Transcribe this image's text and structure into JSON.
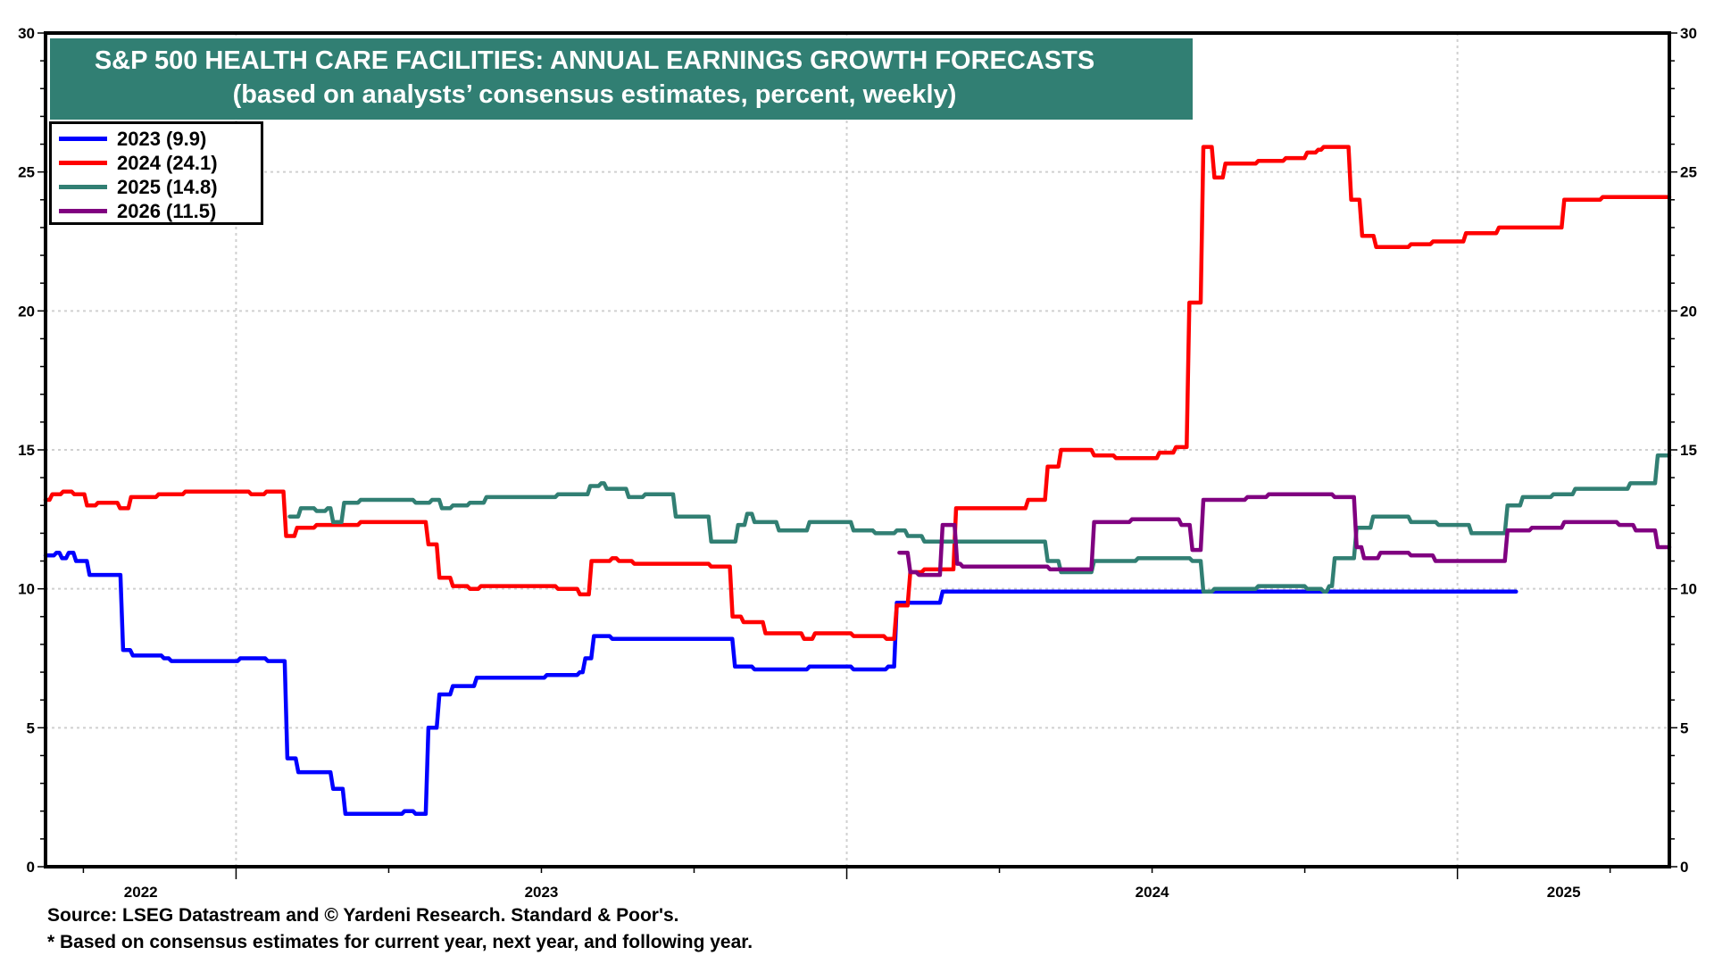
{
  "chart_data": {
    "type": "line",
    "title": "S&P 500 HEALTH CARE FACILITIES: ANNUAL EARNINGS GROWTH FORECASTS",
    "subtitle": "(based on analysts’ consensus estimates, percent, weekly)",
    "xlabel": "",
    "ylabel": "",
    "x_unit": "fractional year",
    "xlim": [
      2022.688,
      2025.347
    ],
    "ylim": [
      0,
      30
    ],
    "y_ticks": [
      0,
      5,
      10,
      15,
      20,
      25,
      30
    ],
    "y_tick_labels": [
      "0",
      "5",
      "10",
      "15",
      "20",
      "25",
      "30"
    ],
    "x_year_boundaries": [
      2023,
      2024,
      2025
    ],
    "x_tick_labels": [
      {
        "label": "2022",
        "at": 2022.844
      },
      {
        "label": "2023",
        "at": 2023.5
      },
      {
        "label": "2024",
        "at": 2024.5
      },
      {
        "label": "2025",
        "at": 2025.174
      }
    ],
    "grid": true,
    "legend_position": "top-left",
    "step": true,
    "series": [
      {
        "name": "2023 (9.9)",
        "color": "#0000ff",
        "points": [
          [
            2022.688,
            11.2
          ],
          [
            2022.706,
            11.3
          ],
          [
            2022.715,
            11.1
          ],
          [
            2022.726,
            11.3
          ],
          [
            2022.738,
            11.0
          ],
          [
            2022.76,
            10.5
          ],
          [
            2022.815,
            7.8
          ],
          [
            2022.831,
            7.6
          ],
          [
            2022.882,
            7.5
          ],
          [
            2022.894,
            7.4
          ],
          [
            2023.007,
            7.5
          ],
          [
            2023.052,
            7.4
          ],
          [
            2023.084,
            3.9
          ],
          [
            2023.102,
            3.4
          ],
          [
            2023.159,
            2.8
          ],
          [
            2023.179,
            1.9
          ],
          [
            2023.276,
            2.0
          ],
          [
            2023.294,
            1.9
          ],
          [
            2023.315,
            5.0
          ],
          [
            2023.333,
            6.2
          ],
          [
            2023.355,
            6.5
          ],
          [
            2023.394,
            6.8
          ],
          [
            2023.509,
            6.9
          ],
          [
            2023.563,
            7.0
          ],
          [
            2023.572,
            7.5
          ],
          [
            2023.586,
            8.3
          ],
          [
            2023.616,
            8.2
          ],
          [
            2023.688,
            8.2
          ],
          [
            2023.817,
            7.2
          ],
          [
            2023.849,
            7.1
          ],
          [
            2023.939,
            7.2
          ],
          [
            2024.011,
            7.1
          ],
          [
            2024.068,
            7.2
          ],
          [
            2024.082,
            9.5
          ],
          [
            2024.157,
            9.9
          ],
          [
            2025.096,
            9.9
          ]
        ]
      },
      {
        "name": "2024 (24.1)",
        "color": "#ff0000",
        "points": [
          [
            2022.688,
            13.2
          ],
          [
            2022.699,
            13.4
          ],
          [
            2022.717,
            13.5
          ],
          [
            2022.735,
            13.4
          ],
          [
            2022.756,
            13.0
          ],
          [
            2022.774,
            13.1
          ],
          [
            2022.81,
            12.9
          ],
          [
            2022.828,
            13.3
          ],
          [
            2022.873,
            13.4
          ],
          [
            2022.917,
            13.5
          ],
          [
            2023.025,
            13.4
          ],
          [
            2023.05,
            13.5
          ],
          [
            2023.082,
            11.9
          ],
          [
            2023.1,
            12.2
          ],
          [
            2023.132,
            12.3
          ],
          [
            2023.204,
            12.4
          ],
          [
            2023.315,
            11.6
          ],
          [
            2023.333,
            10.4
          ],
          [
            2023.355,
            10.1
          ],
          [
            2023.383,
            10.0
          ],
          [
            2023.401,
            10.1
          ],
          [
            2023.527,
            10.0
          ],
          [
            2023.563,
            9.8
          ],
          [
            2023.582,
            11.0
          ],
          [
            2023.616,
            11.1
          ],
          [
            2023.627,
            11.0
          ],
          [
            2023.652,
            10.9
          ],
          [
            2023.724,
            10.9
          ],
          [
            2023.778,
            10.8
          ],
          [
            2023.813,
            9.0
          ],
          [
            2023.831,
            8.8
          ],
          [
            2023.867,
            8.4
          ],
          [
            2023.93,
            8.2
          ],
          [
            2023.948,
            8.4
          ],
          [
            2024.011,
            8.3
          ],
          [
            2024.065,
            8.2
          ],
          [
            2024.082,
            9.4
          ],
          [
            2024.104,
            10.6
          ],
          [
            2024.127,
            10.7
          ],
          [
            2024.179,
            12.9
          ],
          [
            2024.297,
            13.2
          ],
          [
            2024.329,
            14.4
          ],
          [
            2024.351,
            15.0
          ],
          [
            2024.405,
            14.8
          ],
          [
            2024.441,
            14.7
          ],
          [
            2024.512,
            14.9
          ],
          [
            2024.539,
            15.1
          ],
          [
            2024.561,
            20.3
          ],
          [
            2024.584,
            25.9
          ],
          [
            2024.602,
            24.8
          ],
          [
            2024.62,
            25.3
          ],
          [
            2024.674,
            25.4
          ],
          [
            2024.719,
            25.5
          ],
          [
            2024.754,
            25.7
          ],
          [
            2024.772,
            25.8
          ],
          [
            2024.781,
            25.9
          ],
          [
            2024.826,
            24.0
          ],
          [
            2024.844,
            22.7
          ],
          [
            2024.867,
            22.3
          ],
          [
            2024.924,
            22.4
          ],
          [
            2024.96,
            22.5
          ],
          [
            2025.014,
            22.8
          ],
          [
            2025.068,
            23.0
          ],
          [
            2025.175,
            24.0
          ],
          [
            2025.238,
            24.1
          ],
          [
            2025.347,
            24.1
          ]
        ]
      },
      {
        "name": "2025 (14.8)",
        "color": "#317f73",
        "points": [
          [
            2023.088,
            12.6
          ],
          [
            2023.106,
            12.9
          ],
          [
            2023.132,
            12.8
          ],
          [
            2023.15,
            12.9
          ],
          [
            2023.159,
            12.4
          ],
          [
            2023.177,
            13.1
          ],
          [
            2023.204,
            13.2
          ],
          [
            2023.294,
            13.1
          ],
          [
            2023.321,
            13.2
          ],
          [
            2023.337,
            12.9
          ],
          [
            2023.355,
            13.0
          ],
          [
            2023.383,
            13.1
          ],
          [
            2023.41,
            13.3
          ],
          [
            2023.509,
            13.3
          ],
          [
            2023.527,
            13.4
          ],
          [
            2023.58,
            13.7
          ],
          [
            2023.598,
            13.8
          ],
          [
            2023.607,
            13.6
          ],
          [
            2023.643,
            13.3
          ],
          [
            2023.67,
            13.4
          ],
          [
            2023.72,
            12.6
          ],
          [
            2023.778,
            11.7
          ],
          [
            2023.822,
            12.3
          ],
          [
            2023.837,
            12.7
          ],
          [
            2023.849,
            12.4
          ],
          [
            2023.889,
            12.1
          ],
          [
            2023.939,
            12.4
          ],
          [
            2024.011,
            12.1
          ],
          [
            2024.047,
            12.0
          ],
          [
            2024.082,
            12.1
          ],
          [
            2024.1,
            11.9
          ],
          [
            2024.127,
            11.7
          ],
          [
            2024.172,
            11.7
          ],
          [
            2024.329,
            11.0
          ],
          [
            2024.351,
            10.6
          ],
          [
            2024.405,
            11.0
          ],
          [
            2024.477,
            11.1
          ],
          [
            2024.566,
            11.0
          ],
          [
            2024.584,
            9.9
          ],
          [
            2024.602,
            10.0
          ],
          [
            2024.674,
            10.1
          ],
          [
            2024.754,
            10.0
          ],
          [
            2024.781,
            9.9
          ],
          [
            2024.79,
            10.1
          ],
          [
            2024.799,
            11.1
          ],
          [
            2024.835,
            12.2
          ],
          [
            2024.862,
            12.6
          ],
          [
            2024.924,
            12.4
          ],
          [
            2024.969,
            12.3
          ],
          [
            2025.023,
            12.0
          ],
          [
            2025.082,
            13.0
          ],
          [
            2025.107,
            13.3
          ],
          [
            2025.157,
            13.4
          ],
          [
            2025.193,
            13.6
          ],
          [
            2025.283,
            13.8
          ],
          [
            2025.328,
            14.8
          ],
          [
            2025.347,
            14.8
          ]
        ]
      },
      {
        "name": "2026 (11.5)",
        "color": "#800080",
        "points": [
          [
            2024.086,
            11.3
          ],
          [
            2024.104,
            10.6
          ],
          [
            2024.118,
            10.5
          ],
          [
            2024.157,
            12.3
          ],
          [
            2024.181,
            10.9
          ],
          [
            2024.19,
            10.8
          ],
          [
            2024.333,
            10.7
          ],
          [
            2024.405,
            12.4
          ],
          [
            2024.467,
            12.5
          ],
          [
            2024.548,
            12.3
          ],
          [
            2024.566,
            11.4
          ],
          [
            2024.584,
            13.2
          ],
          [
            2024.656,
            13.3
          ],
          [
            2024.691,
            13.4
          ],
          [
            2024.799,
            13.3
          ],
          [
            2024.835,
            11.5
          ],
          [
            2024.847,
            11.1
          ],
          [
            2024.874,
            11.3
          ],
          [
            2024.924,
            11.2
          ],
          [
            2024.964,
            11.0
          ],
          [
            2025.014,
            11.0
          ],
          [
            2025.082,
            12.1
          ],
          [
            2025.122,
            12.2
          ],
          [
            2025.175,
            12.4
          ],
          [
            2025.265,
            12.3
          ],
          [
            2025.292,
            12.1
          ],
          [
            2025.328,
            11.5
          ],
          [
            2025.347,
            11.5
          ]
        ]
      }
    ]
  },
  "title": {
    "line1": "S&P 500 HEALTH CARE FACILITIES: ANNUAL EARNINGS GROWTH FORECASTS",
    "line2": "(based on analysts’ consensus estimates, percent, weekly)",
    "background": "#317f73"
  },
  "legend": {
    "items": [
      {
        "label": "2023 (9.9)",
        "color": "#0000ff"
      },
      {
        "label": "2024 (24.1)",
        "color": "#ff0000"
      },
      {
        "label": "2025 (14.8)",
        "color": "#317f73"
      },
      {
        "label": "2026 (11.5)",
        "color": "#800080"
      }
    ]
  },
  "footer": {
    "source": "Source: LSEG Datastream and © Yardeni Research. Standard & Poor's.",
    "note": "* Based on consensus estimates for current year, next year, and following year."
  }
}
